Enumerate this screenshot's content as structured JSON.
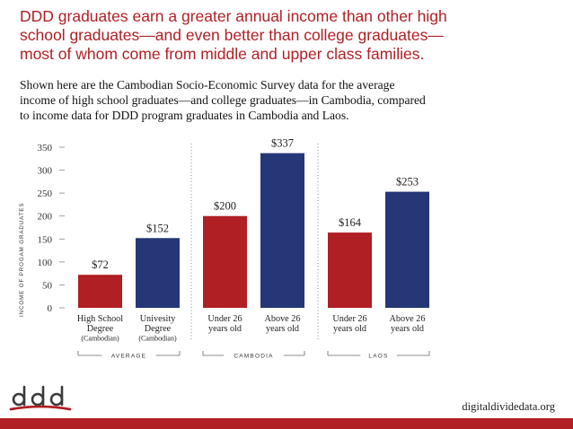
{
  "header": {
    "headline_lines": [
      "DDD graduates earn a greater annual income than other high",
      "school graduates—and even better than college graduates—",
      "most of whom come from middle and upper class families."
    ],
    "subtext_lines": [
      "Shown here are the Cambodian Socio-Economic Survey data for the average",
      "income of high school graduates—and college graduates—in Cambodia, compared",
      "to income data for DDD program graduates in Cambodia and Laos."
    ]
  },
  "chart_data": {
    "type": "bar",
    "title": "",
    "ylabel": "INCOME OF PROGAM GRADUATES",
    "ylim": [
      0,
      350
    ],
    "yticks": [
      0,
      50,
      100,
      150,
      200,
      250,
      300,
      350
    ],
    "grid": false,
    "categories": [
      [
        "High School",
        "Degree",
        "(Cambodian)"
      ],
      [
        "Univesity",
        "Degree",
        "(Cambodian)"
      ],
      [
        "Under 26",
        "years old"
      ],
      [
        "Above 26",
        "years old"
      ],
      [
        "Under 26",
        "years old"
      ],
      [
        "Above 26",
        "years old"
      ]
    ],
    "values": [
      72,
      152,
      200,
      337,
      164,
      253
    ],
    "value_labels": [
      "$72",
      "$152",
      "$200",
      "$337",
      "$164",
      "$253"
    ],
    "bar_colors": [
      "#b01f24",
      "#253776",
      "#b01f24",
      "#253776",
      "#b01f24",
      "#253776"
    ],
    "groups": [
      {
        "label": "AVERAGE",
        "bars": [
          0,
          1
        ]
      },
      {
        "label": "CAMBODIA",
        "bars": [
          2,
          3
        ]
      },
      {
        "label": "LAOS",
        "bars": [
          4,
          5
        ]
      }
    ]
  },
  "footer": {
    "logo_text": "ddd",
    "website": "digitaldividedata.org"
  },
  "colors": {
    "accent_red": "#b01f24",
    "navy": "#253776"
  }
}
